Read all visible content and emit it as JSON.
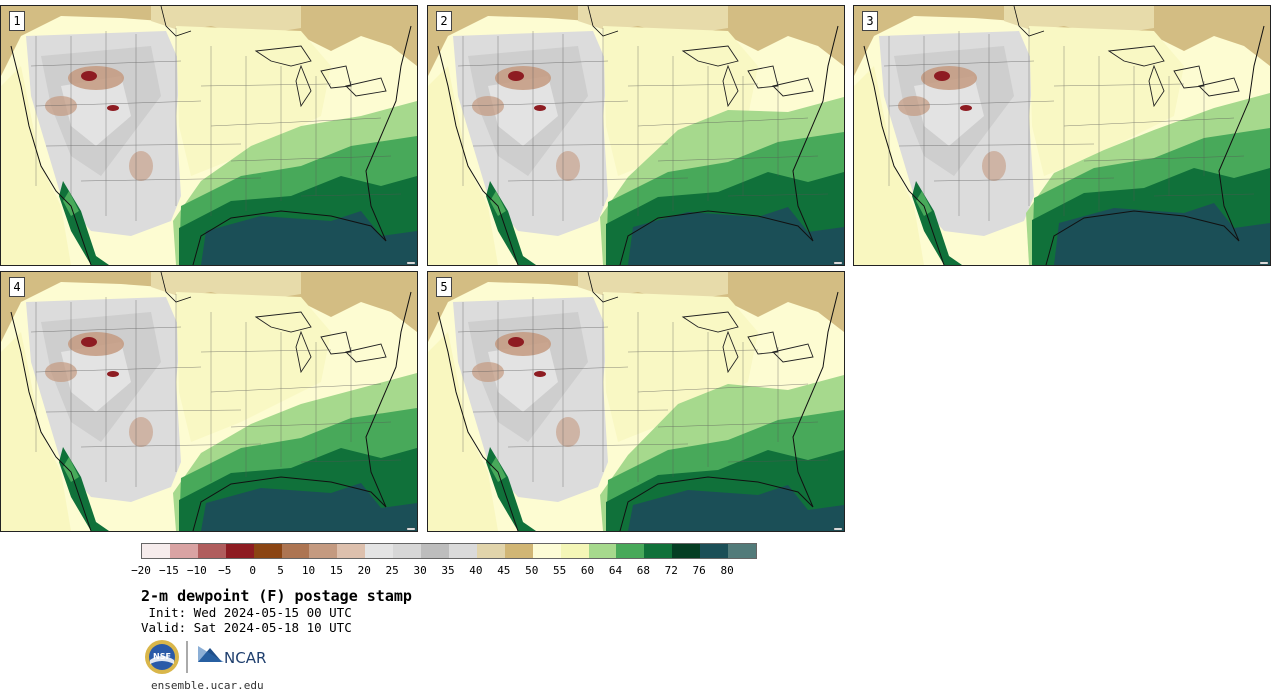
{
  "panels": [
    {
      "label": "1"
    },
    {
      "label": "2"
    },
    {
      "label": "3"
    },
    {
      "label": "4"
    },
    {
      "label": "5"
    }
  ],
  "colorbar": {
    "colors": [
      "#f6ecec",
      "#d9a3a3",
      "#b05d5d",
      "#8e1c22",
      "#8b4513",
      "#ad7552",
      "#c49a80",
      "#ddc0ad",
      "#e4e4e4",
      "#d7d7d7",
      "#bdbdbd",
      "#dadada",
      "#e1d4ab",
      "#d1b675",
      "#fdfcd6",
      "#f4f6b7",
      "#a6d98d",
      "#48a95a",
      "#10713a",
      "#053e24",
      "#1b4f57",
      "#527b7a"
    ],
    "ticks": [
      "−20",
      "−15",
      "−10",
      "−5",
      "0",
      "5",
      "10",
      "15",
      "20",
      "25",
      "30",
      "35",
      "40",
      "45",
      "50",
      "55",
      "60",
      "64",
      "68",
      "72",
      "76",
      "80"
    ]
  },
  "title": "2-m dewpoint (F) postage stamp",
  "init": " Init: Wed 2024-05-15 00 UTC",
  "valid": "Valid: Sat 2024-05-18 10 UTC",
  "logos": {
    "nsf_text": "NSF",
    "ncar_text": "NCAR"
  },
  "footer": "ensemble.ucar.edu"
}
